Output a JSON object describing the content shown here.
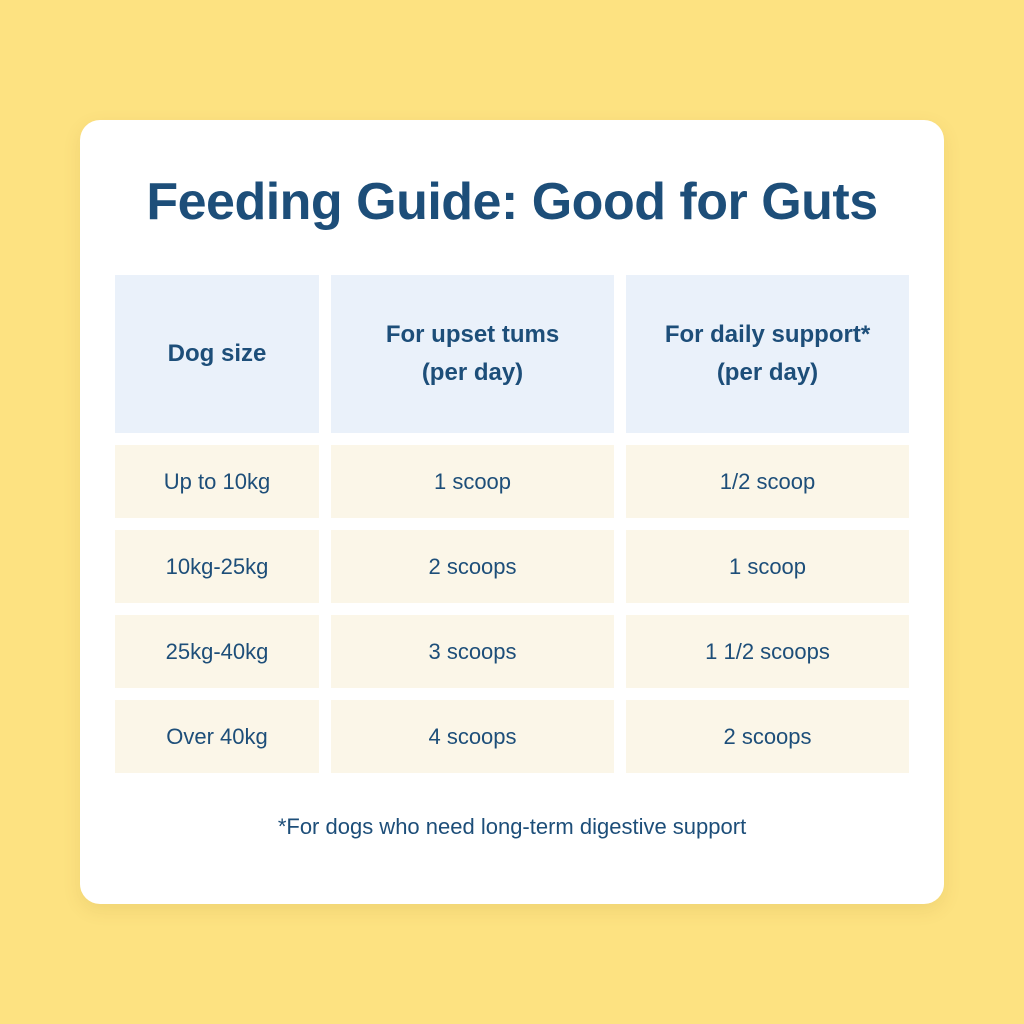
{
  "title": "Feeding Guide: Good for Guts",
  "table": {
    "headers": [
      {
        "line1": "Dog size",
        "line2": ""
      },
      {
        "line1": "For upset tums",
        "line2": "(per day)"
      },
      {
        "line1": "For daily support*",
        "line2": "(per day)"
      }
    ],
    "rows": [
      {
        "size": "Up to 10kg",
        "upset": "1 scoop",
        "daily": "1/2 scoop"
      },
      {
        "size": "10kg-25kg",
        "upset": "2 scoops",
        "daily": "1 scoop"
      },
      {
        "size": "25kg-40kg",
        "upset": "3 scoops",
        "daily": "1 1/2 scoops"
      },
      {
        "size": "Over 40kg",
        "upset": "4 scoops",
        "daily": "2 scoops"
      }
    ]
  },
  "footnote": "*For dogs who need long-term digestive support",
  "colors": {
    "background": "#FDE281",
    "card": "#FFFFFF",
    "text": "#1D4E79",
    "header_cell": "#EAF1FA",
    "body_cell": "#FBF6E8"
  }
}
